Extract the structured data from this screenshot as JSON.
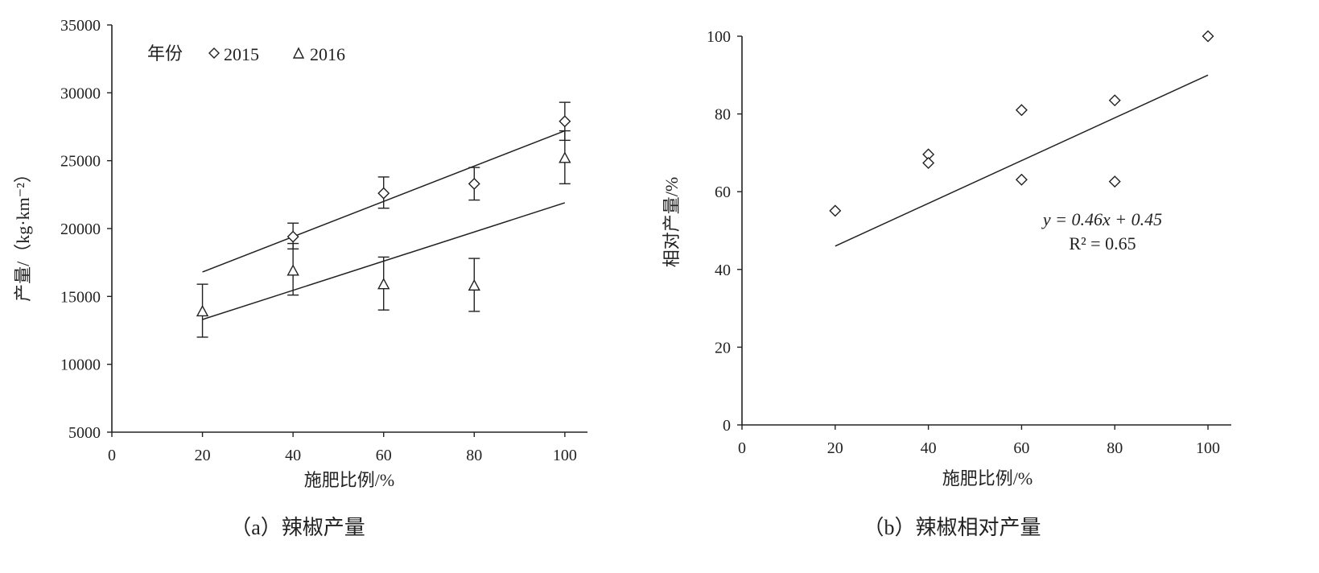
{
  "chart_data": [
    {
      "type": "scatter",
      "caption": "（a）辣椒产量",
      "xlabel": "施肥比例/%",
      "ylabel": "产量/（kg·km⁻²）",
      "xlim": [
        0,
        105
      ],
      "ylim": [
        5000,
        35000
      ],
      "xticks": [
        "0",
        "20",
        "40",
        "60",
        "80",
        "100"
      ],
      "yticks": [
        "5000",
        "10000",
        "15000",
        "20000",
        "25000",
        "30000",
        "35000"
      ],
      "legend": {
        "title": "年份",
        "position": "top-left"
      },
      "series": [
        {
          "name": "2015",
          "marker": "diamond",
          "x": [
            40,
            60,
            80,
            100
          ],
          "y": [
            19400,
            22600,
            23300,
            27900
          ],
          "err_low": [
            18500,
            21500,
            22100,
            26500
          ],
          "err_high": [
            20400,
            23800,
            24500,
            29300
          ],
          "trend": {
            "x": [
              20,
              100
            ],
            "y": [
              16800,
              27200
            ]
          }
        },
        {
          "name": "2016",
          "marker": "triangle",
          "x": [
            20,
            40,
            60,
            80,
            100
          ],
          "y": [
            13900,
            16900,
            15900,
            15800,
            25200
          ],
          "err_low": [
            12000,
            15100,
            14000,
            13900,
            23300
          ],
          "err_high": [
            15900,
            18900,
            17900,
            17800,
            27200
          ],
          "trend": {
            "x": [
              20,
              100
            ],
            "y": [
              13300,
              21900
            ]
          }
        }
      ]
    },
    {
      "type": "scatter",
      "caption": "（b）辣椒相对产量",
      "xlabel": "施肥比例/%",
      "ylabel": "相对产量/%",
      "xlim": [
        0,
        105
      ],
      "ylim": [
        0,
        100
      ],
      "xticks": [
        "0",
        "20",
        "40",
        "60",
        "80",
        "100"
      ],
      "yticks": [
        "0",
        "20",
        "40",
        "60",
        "80",
        "100"
      ],
      "series": [
        {
          "marker": "diamond",
          "x": [
            20,
            40,
            40,
            60,
            60,
            80,
            80,
            100
          ],
          "y": [
            55.1,
            69.6,
            67.4,
            81.0,
            63.1,
            83.5,
            62.6,
            100
          ],
          "trend": {
            "x": [
              20,
              100
            ],
            "y": [
              46.0,
              90.0
            ]
          }
        }
      ],
      "equation": "y = 0.46x + 0.45",
      "r2": "R² = 0.65"
    }
  ]
}
